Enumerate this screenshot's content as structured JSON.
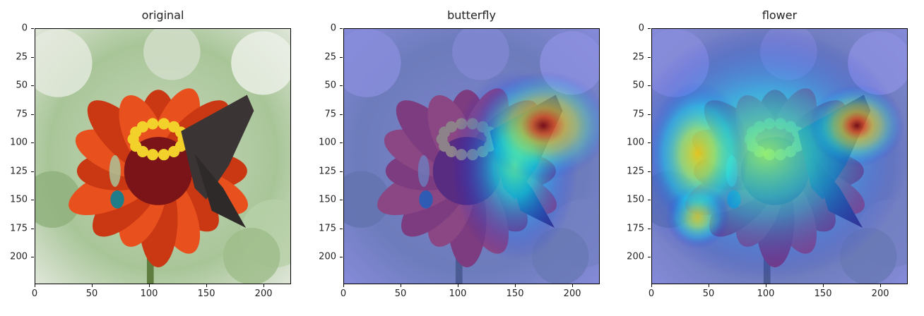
{
  "chart_data": [
    {
      "type": "heatmap",
      "title": "original",
      "xlim": [
        0,
        224
      ],
      "ylim": [
        224,
        0
      ],
      "xticks": [
        0,
        50,
        100,
        150,
        200
      ],
      "yticks": [
        0,
        25,
        50,
        75,
        100,
        125,
        150,
        175,
        200
      ],
      "overlay": "none"
    },
    {
      "type": "heatmap",
      "title": "butterfly",
      "xlim": [
        0,
        224
      ],
      "ylim": [
        224,
        0
      ],
      "xticks": [
        0,
        50,
        100,
        150,
        200
      ],
      "yticks": [
        0,
        25,
        50,
        75,
        100,
        125,
        150,
        175,
        200
      ],
      "overlay": "jet",
      "hotspots": [
        {
          "x": 175,
          "y": 85,
          "intensity": 1.0,
          "rx": 42,
          "ry": 34
        },
        {
          "x": 150,
          "y": 120,
          "intensity": 0.45,
          "rx": 40,
          "ry": 60
        }
      ]
    },
    {
      "type": "heatmap",
      "title": "flower",
      "xlim": [
        0,
        224
      ],
      "ylim": [
        224,
        0
      ],
      "xticks": [
        0,
        50,
        100,
        150,
        200
      ],
      "yticks": [
        0,
        25,
        50,
        75,
        100,
        125,
        150,
        175,
        200
      ],
      "overlay": "jet",
      "hotspots": [
        {
          "x": 180,
          "y": 85,
          "intensity": 1.0,
          "rx": 30,
          "ry": 26
        },
        {
          "x": 40,
          "y": 110,
          "intensity": 0.75,
          "rx": 32,
          "ry": 45
        },
        {
          "x": 40,
          "y": 165,
          "intensity": 0.7,
          "rx": 20,
          "ry": 20
        },
        {
          "x": 100,
          "y": 110,
          "intensity": 0.5,
          "rx": 90,
          "ry": 80
        }
      ]
    }
  ],
  "colors": {
    "background": "#ffffff",
    "petal": "#e8501e",
    "petal_dark": "#c93812",
    "center_red": "#7a1418",
    "center_yellow": "#f2d22a",
    "butterfly": "#3b3434",
    "foliage": "#a8c598",
    "jet_base": "#3c3fd8"
  }
}
